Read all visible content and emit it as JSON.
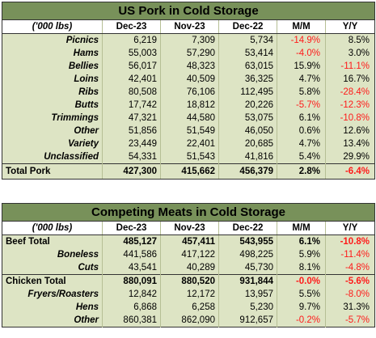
{
  "pork": {
    "title": "US Pork in Cold Storage",
    "headers": [
      "('000 lbs)",
      "Dec-23",
      "Nov-23",
      "Dec-22",
      "M/M",
      "Y/Y"
    ],
    "rows": [
      {
        "label": "Picnics",
        "dec23": "6,219",
        "nov23": "7,309",
        "dec22": "5,734",
        "mm": "-14.9%",
        "yy": "8.5%"
      },
      {
        "label": "Hams",
        "dec23": "55,003",
        "nov23": "57,290",
        "dec22": "53,414",
        "mm": "-4.0%",
        "yy": "3.0%"
      },
      {
        "label": "Bellies",
        "dec23": "56,017",
        "nov23": "48,323",
        "dec22": "63,015",
        "mm": "15.9%",
        "yy": "-11.1%"
      },
      {
        "label": "Loins",
        "dec23": "42,401",
        "nov23": "40,509",
        "dec22": "36,325",
        "mm": "4.7%",
        "yy": "16.7%"
      },
      {
        "label": "Ribs",
        "dec23": "80,508",
        "nov23": "76,106",
        "dec22": "112,495",
        "mm": "5.8%",
        "yy": "-28.4%"
      },
      {
        "label": "Butts",
        "dec23": "17,742",
        "nov23": "18,812",
        "dec22": "20,226",
        "mm": "-5.7%",
        "yy": "-12.3%"
      },
      {
        "label": "Trimmings",
        "dec23": "47,321",
        "nov23": "44,580",
        "dec22": "53,075",
        "mm": "6.1%",
        "yy": "-10.8%"
      },
      {
        "label": "Other",
        "dec23": "51,856",
        "nov23": "51,549",
        "dec22": "46,050",
        "mm": "0.6%",
        "yy": "12.6%"
      },
      {
        "label": "Variety",
        "dec23": "23,449",
        "nov23": "22,401",
        "dec22": "20,685",
        "mm": "4.7%",
        "yy": "13.4%"
      },
      {
        "label": "Unclassified",
        "dec23": "54,331",
        "nov23": "51,543",
        "dec22": "41,816",
        "mm": "5.4%",
        "yy": "29.9%"
      }
    ],
    "total": {
      "label": "Total Pork",
      "dec23": "427,300",
      "nov23": "415,662",
      "dec22": "456,379",
      "mm": "2.8%",
      "yy": "-6.4%"
    }
  },
  "meats": {
    "title": "Competing Meats in Cold Storage",
    "headers": [
      "('000 lbs)",
      "Dec-23",
      "Nov-23",
      "Dec-22",
      "M/M",
      "Y/Y"
    ],
    "beef": {
      "total": {
        "label": "Beef Total",
        "dec23": "485,127",
        "nov23": "457,411",
        "dec22": "543,955",
        "mm": "6.1%",
        "yy": "-10.8%"
      },
      "rows": [
        {
          "label": "Boneless",
          "dec23": "441,586",
          "nov23": "417,122",
          "dec22": "498,225",
          "mm": "5.9%",
          "yy": "-11.4%"
        },
        {
          "label": "Cuts",
          "dec23": "43,541",
          "nov23": "40,289",
          "dec22": "45,730",
          "mm": "8.1%",
          "yy": "-4.8%"
        }
      ]
    },
    "chicken": {
      "total": {
        "label": "Chicken Total",
        "dec23": "880,091",
        "nov23": "880,520",
        "dec22": "931,844",
        "mm": "-0.0%",
        "yy": "-5.6%"
      },
      "rows": [
        {
          "label": "Fryers/Roasters",
          "dec23": "12,842",
          "nov23": "12,172",
          "dec22": "13,957",
          "mm": "5.5%",
          "yy": "-8.0%"
        },
        {
          "label": "Hens",
          "dec23": "6,868",
          "nov23": "6,258",
          "dec22": "5,230",
          "mm": "9.7%",
          "yy": "31.3%"
        },
        {
          "label": "Other",
          "dec23": "860,381",
          "nov23": "862,090",
          "dec22": "912,657",
          "mm": "-0.2%",
          "yy": "-5.7%"
        }
      ]
    }
  },
  "colors": {
    "header_bg": "#78915a",
    "row_bg": "#dde4c4",
    "negative": "#ff1a1a"
  }
}
